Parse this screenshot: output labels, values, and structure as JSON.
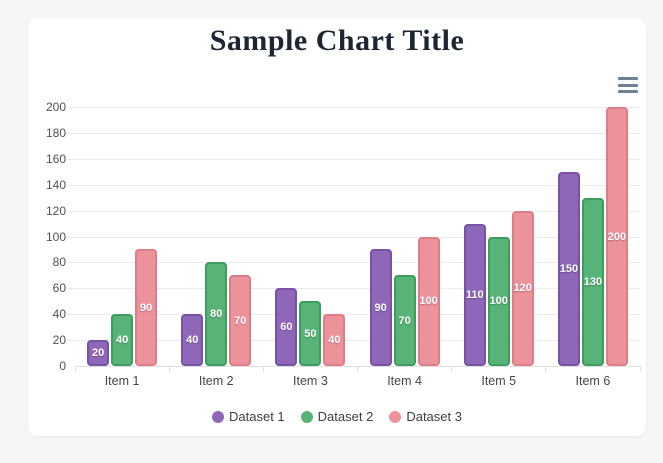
{
  "page": {
    "title": "Sample Chart Title",
    "background_color": "#f5f6f6",
    "card_color": "#ffffff",
    "title_color": "#1c2532"
  },
  "toolbar": {
    "menu_icon": "hamburger-menu",
    "menu_icon_color": "#6e8192"
  },
  "chart_data": {
    "type": "bar",
    "title": "Sample Chart Title",
    "categories": [
      "Item 1",
      "Item 2",
      "Item 3",
      "Item 4",
      "Item 5",
      "Item 6"
    ],
    "series": [
      {
        "name": "Dataset 1",
        "color": "#8e67b8",
        "border_color": "#7752a5",
        "values": [
          20,
          40,
          60,
          90,
          110,
          150
        ]
      },
      {
        "name": "Dataset 2",
        "color": "#57b377",
        "border_color": "#3b9e5e",
        "values": [
          40,
          80,
          50,
          70,
          100,
          130
        ]
      },
      {
        "name": "Dataset 3",
        "color": "#eb929b",
        "border_color": "#dd7d88",
        "values": [
          90,
          70,
          40,
          100,
          120,
          200
        ]
      }
    ],
    "xlabel": "",
    "ylabel": "",
    "ylim": [
      0,
      200
    ],
    "y_ticks": [
      0,
      20,
      40,
      60,
      80,
      100,
      120,
      140,
      160,
      180,
      200
    ],
    "grid": true,
    "gridline_color": "#ebebeb",
    "legend_position": "bottom",
    "data_labels": "values shown in white, centered inside bars"
  }
}
